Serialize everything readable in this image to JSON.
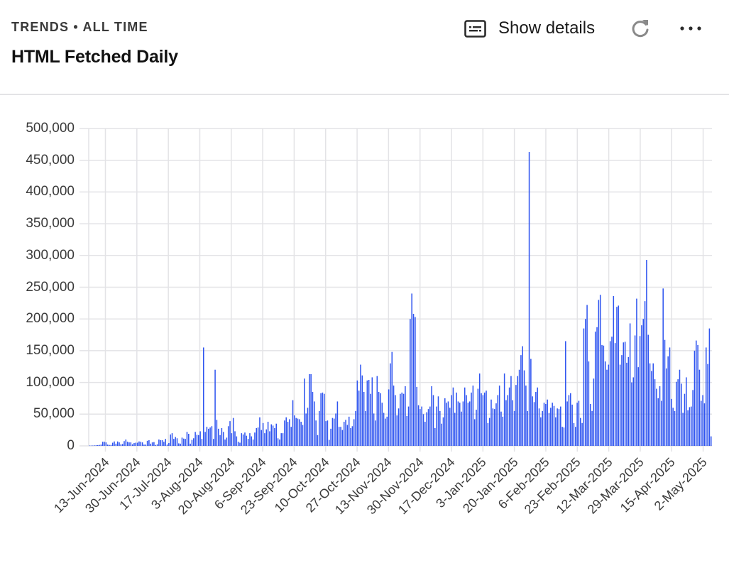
{
  "header": {
    "eyebrow": "TRENDS • ALL TIME",
    "title": "HTML Fetched Daily",
    "show_details_label": "Show details",
    "icons": {
      "details": "details-card-icon",
      "refresh": "refresh-icon",
      "more": "more-horizontal-icon"
    }
  },
  "colors": {
    "bar": "#2f55f0",
    "grid": "#e3e3e6",
    "axis_text": "#3a3a3a",
    "title": "#111111"
  },
  "chart_data": {
    "type": "bar",
    "title": "HTML Fetched Daily",
    "subtitle": "TRENDS • ALL TIME",
    "xlabel": "",
    "ylabel": "",
    "ylim": [
      0,
      500000
    ],
    "grid": true,
    "legend": "none",
    "yticks": [
      "0",
      "50,000",
      "100,000",
      "150,000",
      "200,000",
      "250,000",
      "300,000",
      "350,000",
      "400,000",
      "450,000",
      "500,000"
    ],
    "xticks": [
      "13-Jun-2024",
      "30-Jun-2024",
      "17-Jul-2024",
      "3-Aug-2024",
      "20-Aug-2024",
      "6-Sep-2024",
      "23-Sep-2024",
      "10-Oct-2024",
      "27-Oct-2024",
      "13-Nov-2024",
      "30-Nov-2024",
      "17-Dec-2024",
      "3-Jan-2025",
      "20-Jan-2025",
      "6-Feb-2025",
      "23-Feb-2025",
      "12-Mar-2025",
      "29-Mar-2025",
      "15-Apr-2025",
      "2-May-2025"
    ],
    "start_date": "4-Jun-2024",
    "interval_days": 1,
    "series": [
      {
        "name": "HTML Fetched",
        "values": [
          500,
          500,
          500,
          800,
          1000,
          1200,
          1500,
          2000,
          6500,
          6500,
          5500,
          2000,
          1500,
          1500,
          5000,
          7000,
          3500,
          7000,
          5500,
          2500,
          3000,
          7500,
          10000,
          6500,
          5500,
          5500,
          2500,
          4500,
          5000,
          5000,
          7000,
          6500,
          5500,
          2000,
          2000,
          8000,
          9000,
          3500,
          5500,
          6000,
          1500,
          2500,
          10000,
          9000,
          9000,
          6500,
          11000,
          2000,
          4500,
          18000,
          20000,
          11000,
          14000,
          12000,
          4000,
          3500,
          13000,
          11500,
          11000,
          22000,
          19000,
          3500,
          9500,
          12000,
          22000,
          17500,
          17000,
          23000,
          11000,
          155000,
          22000,
          30000,
          27000,
          29000,
          31000,
          11000,
          120000,
          41000,
          27000,
          17000,
          28000,
          22000,
          10000,
          13000,
          31000,
          39000,
          20000,
          44000,
          23000,
          15000,
          6500,
          5000,
          20000,
          18000,
          21000,
          16000,
          11000,
          20000,
          15000,
          10000,
          21000,
          28000,
          29000,
          45000,
          25000,
          36000,
          20000,
          26000,
          38000,
          23000,
          34000,
          32000,
          28000,
          35000,
          12000,
          10000,
          20000,
          20000,
          40000,
          45000,
          38000,
          42000,
          30000,
          72000,
          48000,
          44000,
          43000,
          42000,
          38000,
          33000,
          106000,
          51000,
          60000,
          113000,
          113000,
          85000,
          70000,
          40000,
          17000,
          55000,
          83000,
          84000,
          82000,
          39000,
          40000,
          9500,
          27000,
          44000,
          43000,
          51000,
          70000,
          30000,
          30000,
          25000,
          38000,
          41000,
          33000,
          46000,
          28000,
          31000,
          42000,
          55000,
          103000,
          87000,
          128000,
          111000,
          85000,
          55000,
          103000,
          104000,
          82000,
          108000,
          51000,
          40000,
          110000,
          85000,
          83000,
          68000,
          52000,
          43000,
          46000,
          89000,
          130000,
          148000,
          95000,
          80000,
          48000,
          59000,
          82000,
          84000,
          82000,
          94000,
          47000,
          62000,
          200000,
          240000,
          208000,
          203000,
          93000,
          64000,
          58000,
          62000,
          50000,
          38000,
          53000,
          58000,
          62000,
          94000,
          80000,
          28000,
          62000,
          78000,
          55000,
          35000,
          45000,
          75000,
          68000,
          70000,
          60000,
          80000,
          92000,
          52000,
          84000,
          70000,
          68000,
          54000,
          70000,
          92000,
          80000,
          68000,
          70000,
          84000,
          95000,
          42000,
          57000,
          90000,
          114000,
          83000,
          80000,
          84000,
          87000,
          36000,
          44000,
          73000,
          59000,
          58000,
          67000,
          80000,
          95000,
          54000,
          46000,
          114000,
          72000,
          80000,
          92000,
          110000,
          72000,
          55000,
          96000,
          110000,
          120000,
          143000,
          157000,
          119000,
          95000,
          55000,
          463000,
          137000,
          78000,
          69000,
          85000,
          92000,
          59000,
          45000,
          55000,
          68000,
          66000,
          73000,
          52000,
          60000,
          68000,
          63000,
          45000,
          59000,
          58000,
          62000,
          30000,
          29000,
          165000,
          70000,
          80000,
          83000,
          65000,
          36000,
          30000,
          68000,
          71000,
          44000,
          36000,
          185000,
          200000,
          222000,
          133000,
          66000,
          55000,
          106000,
          180000,
          187000,
          230000,
          238000,
          159000,
          158000,
          133000,
          120000,
          128000,
          165000,
          172000,
          236000,
          162000,
          219000,
          221000,
          128000,
          143000,
          163000,
          164000,
          131000,
          140000,
          193000,
          100000,
          108000,
          174000,
          232000,
          124000,
          173000,
          190000,
          200000,
          228000,
          293000,
          175000,
          130000,
          118000,
          130000,
          105000,
          90000,
          75000,
          94000,
          71000,
          248000,
          167000,
          122000,
          141000,
          155000,
          74000,
          60000,
          55000,
          101000,
          105000,
          120000,
          98000,
          52000,
          82000,
          108000,
          56000,
          61000,
          62000,
          88000,
          150000,
          166000,
          159000,
          120000,
          71000,
          80000,
          67000,
          155000,
          129000,
          185000,
          15000
        ],
        "color": "#2f55f0"
      }
    ],
    "notable_peaks": [
      {
        "date_approx": "10-Feb-2025",
        "value": 463000
      },
      {
        "date_approx": "16-Apr-2025",
        "value": 293000
      },
      {
        "date_approx": "11-Dec-2024",
        "value": 240000
      },
      {
        "date_approx": "12-Aug-2024",
        "value": 155000
      },
      {
        "date_approx": "19-Aug-2024",
        "value": 120000
      }
    ]
  }
}
